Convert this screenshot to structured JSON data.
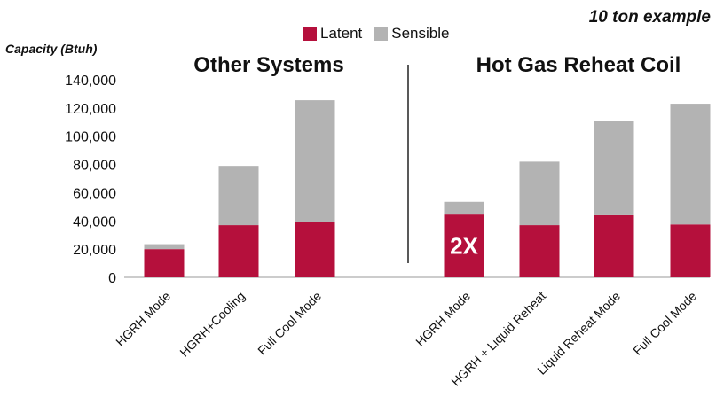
{
  "chart_data": {
    "type": "bar",
    "stacked": true,
    "corner_note": "10 ton example",
    "ylabel": "Capacity (Btuh)",
    "ylim": [
      0,
      140000
    ],
    "yticks": [
      "0",
      "20,000",
      "40,000",
      "60,000",
      "80,000",
      "100,000",
      "120,000",
      "140,000"
    ],
    "legend_position": "top-center",
    "colors": {
      "latent": "#b5103c",
      "sensible": "#b3b3b3"
    },
    "series": [
      {
        "name": "Latent",
        "values": [
          20000,
          37000,
          39500,
          44500,
          37000,
          44000,
          37500
        ]
      },
      {
        "name": "Sensible",
        "values": [
          3500,
          42000,
          86000,
          9000,
          45000,
          67000,
          85500
        ]
      }
    ],
    "groups": [
      {
        "title": "Other Systems",
        "categories": [
          "HGRH Mode",
          "HGRH+Cooling",
          "Full Cool Mode"
        ]
      },
      {
        "title": "Hot Gas Reheat Coil",
        "categories": [
          "HGRH Mode",
          "HGRH + Liquid Reheat",
          "Liquid Reheat Mode",
          "Full Cool Mode"
        ]
      }
    ],
    "annotations": [
      {
        "bar_index": 3,
        "text": "2X"
      }
    ]
  }
}
